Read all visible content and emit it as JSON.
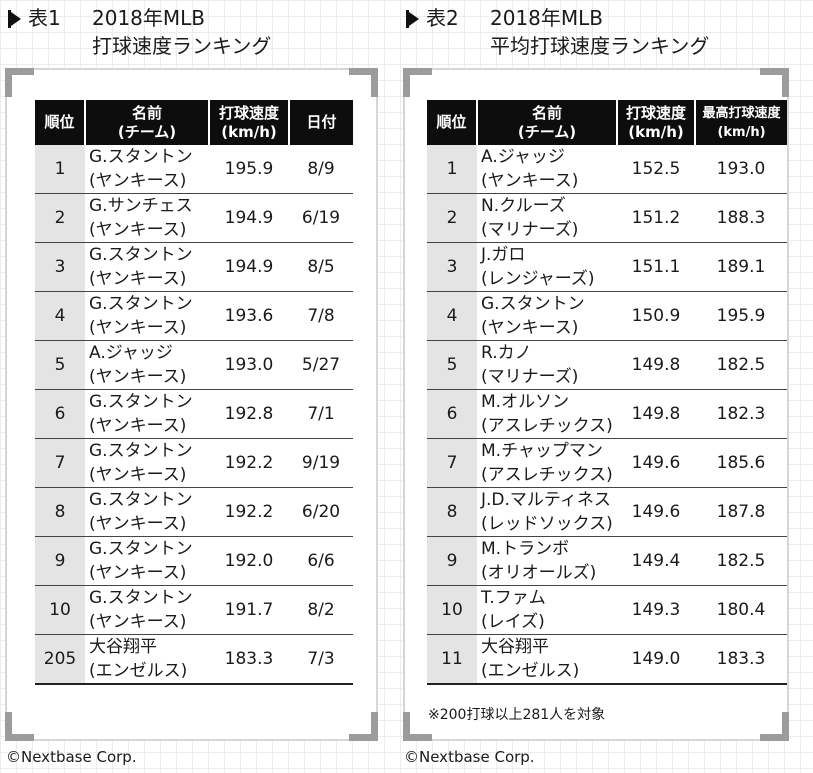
{
  "table1": {
    "label": "表1",
    "title_line1": "2018年MLB",
    "title_line2": "打球速度ランキング",
    "headers": [
      {
        "line1": "順位",
        "line2": ""
      },
      {
        "line1": "名前",
        "line2": "(チーム)"
      },
      {
        "line1": "打球速度",
        "line2": "(km/h)"
      },
      {
        "line1": "日付",
        "line2": ""
      }
    ],
    "rows": [
      {
        "rank": "1",
        "name": "G.スタントン",
        "team": "(ヤンキース)",
        "speed": "195.9",
        "date": "8/9"
      },
      {
        "rank": "2",
        "name": "G.サンチェス",
        "team": "(ヤンキース)",
        "speed": "194.9",
        "date": "6/19"
      },
      {
        "rank": "3",
        "name": "G.スタントン",
        "team": "(ヤンキース)",
        "speed": "194.9",
        "date": "8/5"
      },
      {
        "rank": "4",
        "name": "G.スタントン",
        "team": "(ヤンキース)",
        "speed": "193.6",
        "date": "7/8"
      },
      {
        "rank": "5",
        "name": "A.ジャッジ",
        "team": "(ヤンキース)",
        "speed": "193.0",
        "date": "5/27"
      },
      {
        "rank": "6",
        "name": "G.スタントン",
        "team": "(ヤンキース)",
        "speed": "192.8",
        "date": "7/1"
      },
      {
        "rank": "7",
        "name": "G.スタントン",
        "team": "(ヤンキース)",
        "speed": "192.2",
        "date": "9/19"
      },
      {
        "rank": "8",
        "name": "G.スタントン",
        "team": "(ヤンキース)",
        "speed": "192.2",
        "date": "6/20"
      },
      {
        "rank": "9",
        "name": "G.スタントン",
        "team": "(ヤンキース)",
        "speed": "192.0",
        "date": "6/6"
      },
      {
        "rank": "10",
        "name": "G.スタントン",
        "team": "(ヤンキース)",
        "speed": "191.7",
        "date": "8/2"
      },
      {
        "rank": "205",
        "name": "大谷翔平",
        "team": "(エンゼルス)",
        "speed": "183.3",
        "date": "7/3"
      }
    ],
    "credit": "©Nextbase Corp."
  },
  "table2": {
    "label": "表2",
    "title_line1": "2018年MLB",
    "title_line2": "平均打球速度ランキング",
    "headers": [
      {
        "line1": "順位",
        "line2": ""
      },
      {
        "line1": "名前",
        "line2": "(チーム)"
      },
      {
        "line1": "打球速度",
        "line2": "(km/h)"
      },
      {
        "line1": "最高打球速度",
        "line2": "(km/h)"
      }
    ],
    "rows": [
      {
        "rank": "1",
        "name": "A.ジャッジ",
        "team": "(ヤンキース)",
        "avg": "152.5",
        "max": "193.0"
      },
      {
        "rank": "2",
        "name": "N.クルーズ",
        "team": "(マリナーズ)",
        "avg": "151.2",
        "max": "188.3"
      },
      {
        "rank": "3",
        "name": "J.ガロ",
        "team": "(レンジャーズ)",
        "avg": "151.1",
        "max": "189.1"
      },
      {
        "rank": "4",
        "name": "G.スタントン",
        "team": "(ヤンキース)",
        "avg": "150.9",
        "max": "195.9"
      },
      {
        "rank": "5",
        "name": "R.カノ",
        "team": "(マリナーズ)",
        "avg": "149.8",
        "max": "182.5"
      },
      {
        "rank": "6",
        "name": "M.オルソン",
        "team": "(アスレチックス)",
        "avg": "149.8",
        "max": "182.3"
      },
      {
        "rank": "7",
        "name": "M.チャップマン",
        "team": "(アスレチックス)",
        "avg": "149.6",
        "max": "185.6"
      },
      {
        "rank": "8",
        "name": "J.D.マルティネス",
        "team": "(レッドソックス)",
        "avg": "149.6",
        "max": "187.8"
      },
      {
        "rank": "9",
        "name": "M.トランボ",
        "team": "(オリオールズ)",
        "avg": "149.4",
        "max": "182.5"
      },
      {
        "rank": "10",
        "name": "T.ファム",
        "team": "(レイズ)",
        "avg": "149.3",
        "max": "180.4"
      },
      {
        "rank": "11",
        "name": "大谷翔平",
        "team": "(エンゼルス)",
        "avg": "149.0",
        "max": "183.3"
      }
    ],
    "note": "※200打球以上281人を対象",
    "credit": "©Nextbase Corp."
  }
}
